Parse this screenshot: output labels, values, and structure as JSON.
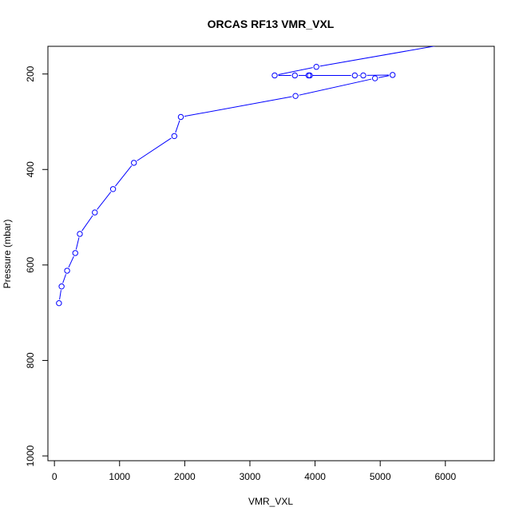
{
  "chart_data": {
    "type": "line",
    "title": "ORCAS RF13 VMR_VXL",
    "xlabel": "VMR_VXL",
    "ylabel": "Pressure (mbar)",
    "xlim": [
      -100,
      6750
    ],
    "ylim": [
      1010,
      142
    ],
    "y_inverted": true,
    "grid": false,
    "legend": "none",
    "x_ticks": [
      0,
      1000,
      2000,
      3000,
      4000,
      5000,
      6000
    ],
    "y_ticks": [
      200,
      400,
      600,
      800,
      1000
    ],
    "colors": {
      "series": "#0000ff",
      "axes": "#000000",
      "background": "#ffffff"
    },
    "series": [
      {
        "points": [
          {
            "x": 70,
            "y": 680
          },
          {
            "x": 110,
            "y": 645
          },
          {
            "x": 195,
            "y": 612
          },
          {
            "x": 320,
            "y": 575
          },
          {
            "x": 390,
            "y": 535
          },
          {
            "x": 620,
            "y": 490
          },
          {
            "x": 900,
            "y": 441
          },
          {
            "x": 1220,
            "y": 386
          },
          {
            "x": 1840,
            "y": 330
          },
          {
            "x": 1940,
            "y": 290
          },
          {
            "x": 3700,
            "y": 246
          },
          {
            "x": 4920,
            "y": 209
          },
          {
            "x": 5190,
            "y": 202
          },
          {
            "x": 4740,
            "y": 203
          },
          {
            "x": 4610,
            "y": 203
          },
          {
            "x": 3900,
            "y": 203
          },
          {
            "x": 3920,
            "y": 203
          },
          {
            "x": 3690,
            "y": 203
          },
          {
            "x": 3380,
            "y": 203
          },
          {
            "x": 4020,
            "y": 185
          },
          {
            "x": 5900,
            "y": 140
          }
        ],
        "marker_hidden_last": true
      }
    ]
  }
}
